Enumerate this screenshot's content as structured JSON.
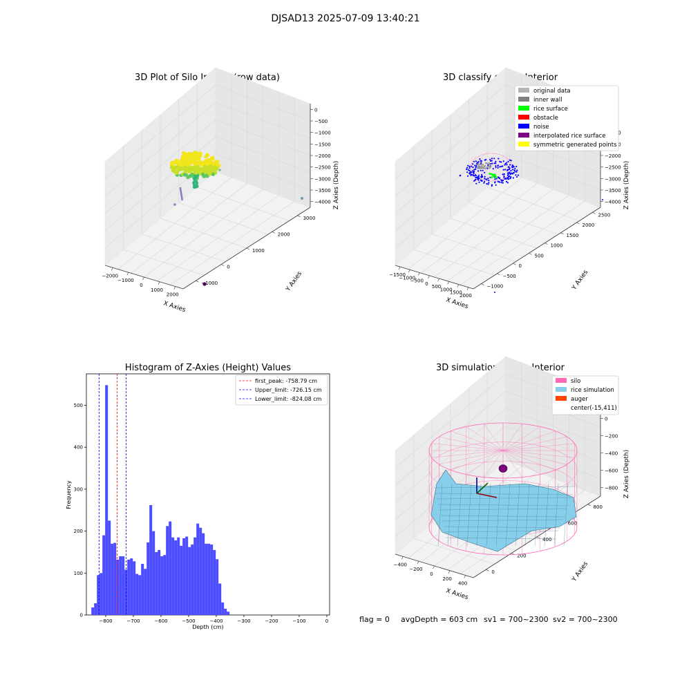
{
  "suptitle": "DJSAD13 2025-07-09 13:40:21",
  "footer": {
    "flag": "flag = 0",
    "avg_depth": "avgDepth = 603 cm",
    "sv1": "sv1 = 700~2300",
    "sv2": "sv2 = 700~2300"
  },
  "colors": {
    "histogram_bar": "#4d4dff",
    "first_peak_line": "#ff0000",
    "limit_line": "#0000ff",
    "pane": "#f2f2f2",
    "grid": "#d9d9d9",
    "silo": "#ff69b4",
    "rice": "#87ceeb",
    "auger": "#ff4500"
  },
  "chart_data": [
    {
      "type": "scatter",
      "subtype": "3d",
      "title": "3D Plot of Silo Interior(row data)",
      "xlabel": "X Axies",
      "ylabel": "Y Axies",
      "zlabel": "Z Axies (Depth)",
      "x_ticks": [
        "−2000",
        "−1000",
        "0",
        "1000",
        "2000"
      ],
      "y_ticks": [
        "−1000",
        "0",
        "1000",
        "2000",
        "3000"
      ],
      "z_ticks": [
        "0",
        "−500",
        "−1000",
        "−1500",
        "−2000",
        "−2500",
        "−3000",
        "−3500",
        "−4000"
      ],
      "grid": true
    },
    {
      "type": "scatter",
      "subtype": "3d",
      "title": "3D classify of Silo Interior",
      "xlabel": "X Axies",
      "ylabel": "Y Axies",
      "zlabel": "Z Axies (Depth)",
      "x_ticks": [
        "−1500",
        "−1000",
        "−500",
        "0",
        "500",
        "1000",
        "1500",
        "2000"
      ],
      "y_ticks": [
        "−1000",
        "−500",
        "0",
        "500",
        "1000",
        "1500",
        "2000",
        "2500"
      ],
      "z_ticks": [
        "0",
        "−500",
        "−1000",
        "−1500",
        "−2000",
        "−2500",
        "−3000",
        "−3500",
        "−4000"
      ],
      "legend": [
        {
          "label": "original data",
          "color": "#b3b3b3"
        },
        {
          "label": "inner wall",
          "color": "#808080"
        },
        {
          "label": "rice surface",
          "color": "#00ff00"
        },
        {
          "label": "obstacle",
          "color": "#ff0000"
        },
        {
          "label": "noise",
          "color": "#0000ff"
        },
        {
          "label": "interpolated rice surface",
          "color": "#800080"
        },
        {
          "label": "symmetric generated points",
          "color": "#ffff00"
        }
      ],
      "legend_position": "top-right",
      "grid": true
    },
    {
      "type": "bar",
      "subtype": "histogram",
      "title": "Histogram of Z-Axies (Height) Values",
      "xlabel": "Depth (cm)",
      "ylabel": "Frequency",
      "xlim": [
        -870,
        10
      ],
      "ylim": [
        0,
        575
      ],
      "x_ticks": [
        -800,
        -700,
        -600,
        -500,
        -400,
        -300,
        -200,
        -100,
        0
      ],
      "x_tick_labels": [
        "−800",
        "−700",
        "−600",
        "−500",
        "−400",
        "−300",
        "−200",
        "−100",
        "0"
      ],
      "y_ticks": [
        0,
        100,
        200,
        300,
        400,
        500
      ],
      "bin_width": 10,
      "bin_start": -852,
      "values": [
        18,
        28,
        95,
        100,
        190,
        548,
        225,
        170,
        172,
        132,
        140,
        140,
        108,
        132,
        135,
        128,
        98,
        95,
        122,
        110,
        173,
        262,
        200,
        150,
        155,
        140,
        143,
        212,
        223,
        185,
        178,
        185,
        165,
        183,
        187,
        162,
        168,
        185,
        218,
        208,
        195,
        170,
        170,
        168,
        155,
        133,
        75,
        30,
        15,
        8
      ],
      "vlines": [
        {
          "label": "first_peak: -758.79 cm",
          "x": -758.79,
          "style": "dashed",
          "color": "#ff0000"
        },
        {
          "label": "Upper_limit: -726.15 cm",
          "x": -726.15,
          "style": "dashed",
          "color": "#0000ff"
        },
        {
          "label": "Lower_limit: -824.08 cm",
          "x": -824.08,
          "style": "dashed",
          "color": "#0000ff"
        }
      ],
      "legend_position": "top-right",
      "grid": false
    },
    {
      "type": "area",
      "subtype": "3d-surface",
      "title": "3D simulation of Silo Interior",
      "xlabel": "X Axies",
      "ylabel": "Y Axies",
      "zlabel": "Z Axies (Depth)",
      "x_ticks": [
        "−400",
        "−200",
        "0",
        "200",
        "400"
      ],
      "y_ticks": [
        "0",
        "200",
        "400",
        "600",
        "800"
      ],
      "z_ticks": [
        "200",
        "0",
        "−200",
        "−400",
        "−600",
        "−800"
      ],
      "legend": [
        {
          "label": "silo",
          "color": "#ff69b4"
        },
        {
          "label": "rice simulation",
          "color": "#87ceeb"
        },
        {
          "label": "auger",
          "color": "#ff4500"
        },
        {
          "label": "center(-15,411)",
          "color": ""
        }
      ],
      "legend_position": "top-right",
      "grid": true
    }
  ]
}
